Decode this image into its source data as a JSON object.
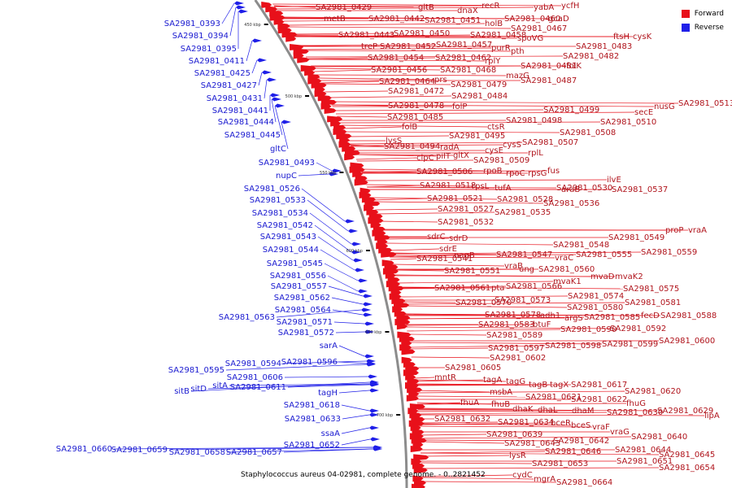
{
  "legend": {
    "forward_label": "Forward",
    "reverse_label": "Reverse",
    "forward_color": "#e8101a",
    "reverse_color": "#1f1fe8"
  },
  "caption": "Staphylococcus aureus 04-02981, complete genome. - 0..2821452",
  "ticks": [
    "450 kbp",
    "500 kbp",
    "550 kbp",
    "600 kbp",
    "650 kbp",
    "700 kbp"
  ],
  "forward_labels": [
    "SA2981_0429",
    "gltB",
    "dnaX",
    "recR",
    "yabA",
    "ycfH",
    "metB",
    "SA2981_0442",
    "SA2981_0451",
    "holB",
    "SA2981_0460",
    "gcaD",
    "SA2981_0443",
    "SA2981_0450",
    "SA2981_0458",
    "SA2981_0467",
    "treP",
    "SA2981_0452",
    "SA2981_0457",
    "purR",
    "spoVG",
    "ftsH",
    "cysK",
    "SA2981_0454",
    "SA2981_0462",
    "rplY",
    "pth",
    "SA2981_0483",
    "SA2981_0482",
    "SA2981_0456",
    "SA2981_0468",
    "mazG",
    "SA2981_0481",
    "folK",
    "SA2981_0464",
    "prs",
    "SA2981_0479",
    "SA2981_0487",
    "SA2981_0472",
    "SA2981_0484",
    "SA2981_0513",
    "SA2981_0478",
    "folP",
    "SA2981_0499",
    "secE",
    "nusG",
    "SA2981_0485",
    "SA2981_0498",
    "SA2981_0510",
    "folB",
    "ctsR",
    "SA2981_0508",
    "lysS",
    "SA2981_0495",
    "SA2981_0507",
    "SA2981_0494",
    "radA",
    "cysE",
    "cysS",
    "clpC",
    "pilT",
    "gltX",
    "rplL",
    "SA2981_0509",
    "SA2981_0506",
    "rpoB",
    "rpoC",
    "rpsG",
    "fus",
    "SA2981_0518",
    "rpsL",
    "tufA",
    "araB",
    "ilvE",
    "SA2981_0521",
    "SA2981_0528",
    "SA2981_0530",
    "SA2981_0537",
    "SA2981_0527",
    "SA2981_0535",
    "SA2981_0536",
    "SA2981_0532",
    "sdrC",
    "sdrD",
    "sdrE",
    "SA2981_0548",
    "proP",
    "vraA",
    "SA2981_0541",
    "nagB",
    "SA2981_0547",
    "vraC",
    "SA2981_0549",
    "SA2981_0555",
    "SA2981_0559",
    "vraB",
    "SA2981_0551",
    "ung",
    "SA2981_0560",
    "mvaK1",
    "mvaD",
    "mvaK2",
    "SA2981_0561",
    "pta",
    "SA2981_0566",
    "SA2981_0575",
    "SA2981_0570",
    "SA2981_0573",
    "SA2981_0574",
    "SA2981_0581",
    "SA2981_0580",
    "SA2981_0578",
    "adh1",
    "argS",
    "SA2981_0585",
    "fecD",
    "SA2981_0588",
    "SA2981_0583",
    "btuF",
    "SA2981_0590",
    "SA2981_0592",
    "SA2981_0589",
    "SA2981_0600",
    "SA2981_0597",
    "SA2981_0598",
    "SA2981_0599",
    "SA2981_0602",
    "SA2981_0605",
    "mntR",
    "tagA",
    "tagG",
    "tagB",
    "tagX",
    "SA2981_0617",
    "SA2981_0620",
    "msbA",
    "SA2981_0621",
    "SA2981_0622",
    "fhuG",
    "fhuA",
    "fhuB",
    "dhaK",
    "dhaL",
    "dhaM",
    "SA2981_0630",
    "SA2981_0629",
    "lipA",
    "SA2981_0632",
    "SA2981_0634",
    "bceR",
    "bceS",
    "vraF",
    "vraG",
    "SA2981_0639",
    "SA2981_0640",
    "SA2981_0643",
    "SA2981_0642",
    "SA2981_0644",
    "lysR",
    "SA2981_0646",
    "SA2981_0645",
    "SA2981_0653",
    "SA2981_0651",
    "SA2981_0654",
    "cydC",
    "mgrA",
    "SA2981_0664"
  ],
  "reverse_labels": [
    "SA2981_0393",
    "SA2981_0394",
    "SA2981_0395",
    "SA2981_0411",
    "SA2981_0425",
    "SA2981_0427",
    "SA2981_0431",
    "SA2981_0441",
    "SA2981_0444",
    "SA2981_0445",
    "gltC",
    "SA2981_0493",
    "nupC",
    "SA2981_0526",
    "SA2981_0533",
    "SA2981_0534",
    "SA2981_0542",
    "SA2981_0543",
    "SA2981_0544",
    "SA2981_0545",
    "SA2981_0556",
    "SA2981_0557",
    "SA2981_0562",
    "SA2981_0563",
    "SA2981_0564",
    "SA2981_0571",
    "SA2981_0572",
    "sarA",
    "SA2981_0594",
    "SA2981_0596",
    "SA2981_0595",
    "SA2981_0606",
    "sitB",
    "sitD",
    "sitA",
    "SA2981_0611",
    "tagH",
    "SA2981_0618",
    "SA2981_0633",
    "ssaA",
    "SA2981_0652",
    "SA2981_0660",
    "SA2981_0659",
    "SA2981_0658",
    "SA2981_0657"
  ]
}
